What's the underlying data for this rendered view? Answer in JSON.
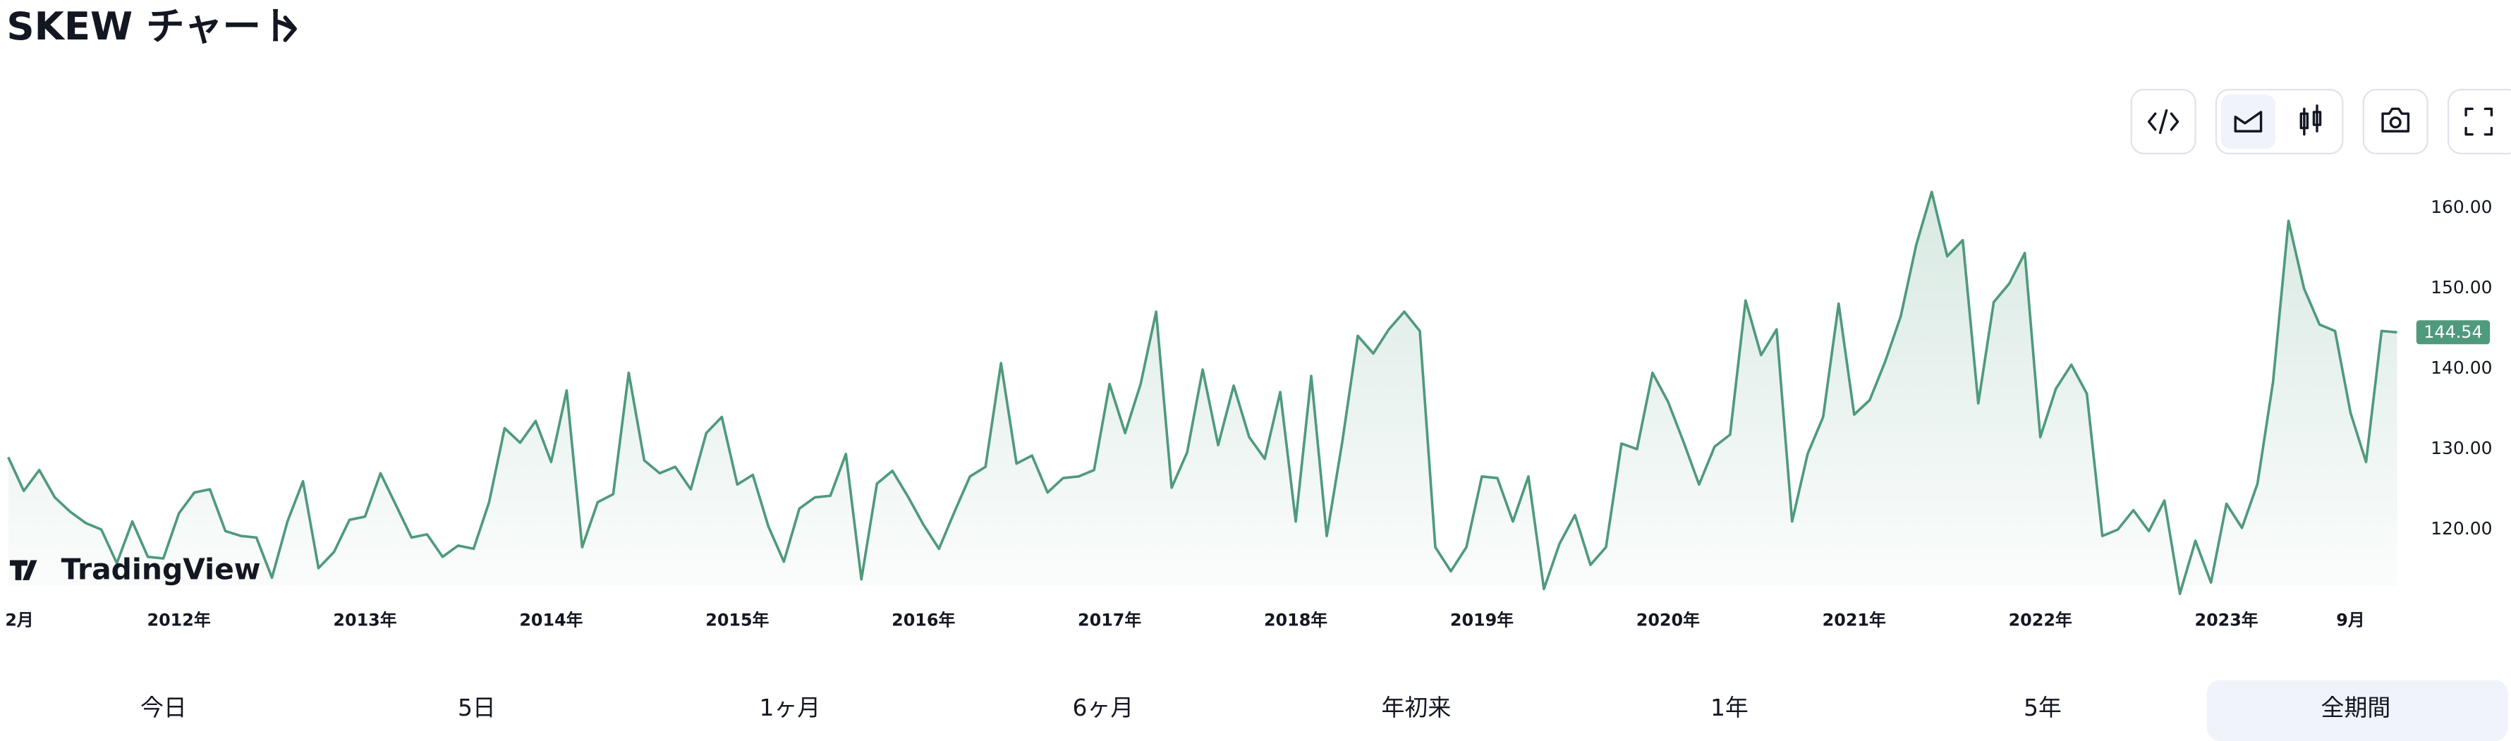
{
  "header": {
    "title": "SKEW チャート"
  },
  "chart_data": {
    "type": "line",
    "x": [
      "2011-02",
      "2011-03",
      "2011-04",
      "2011-05",
      "2011-06",
      "2011-07",
      "2011-08",
      "2011-09",
      "2011-10",
      "2011-11",
      "2011-12",
      "2012-01",
      "2012-02",
      "2012-03",
      "2012-04",
      "2012-05",
      "2012-06",
      "2012-07",
      "2012-08",
      "2012-09",
      "2012-10",
      "2012-11",
      "2012-12",
      "2013-01",
      "2013-02",
      "2013-03",
      "2013-04",
      "2013-05",
      "2013-06",
      "2013-07",
      "2013-08",
      "2013-09",
      "2013-10",
      "2013-11",
      "2013-12",
      "2014-01",
      "2014-02",
      "2014-03",
      "2014-04",
      "2014-05",
      "2014-06",
      "2014-07",
      "2014-08",
      "2014-09",
      "2014-10",
      "2014-11",
      "2014-12",
      "2015-01",
      "2015-02",
      "2015-03",
      "2015-04",
      "2015-05",
      "2015-06",
      "2015-07",
      "2015-08",
      "2015-09",
      "2015-10",
      "2015-11",
      "2015-12",
      "2016-01",
      "2016-02",
      "2016-03",
      "2016-04",
      "2016-05",
      "2016-06",
      "2016-07",
      "2016-08",
      "2016-09",
      "2016-10",
      "2016-11",
      "2016-12",
      "2017-01",
      "2017-02",
      "2017-03",
      "2017-04",
      "2017-05",
      "2017-06",
      "2017-07",
      "2017-08",
      "2017-09",
      "2017-10",
      "2017-11",
      "2017-12",
      "2018-01",
      "2018-02",
      "2018-03",
      "2018-04",
      "2018-05",
      "2018-06",
      "2018-07",
      "2018-08",
      "2018-09",
      "2018-10",
      "2018-11",
      "2018-12",
      "2019-01",
      "2019-02",
      "2019-03",
      "2019-04",
      "2019-05",
      "2019-06",
      "2019-07",
      "2019-08",
      "2019-09",
      "2019-10",
      "2019-11",
      "2019-12",
      "2020-01",
      "2020-02",
      "2020-03",
      "2020-04",
      "2020-05",
      "2020-06",
      "2020-07",
      "2020-08",
      "2020-09",
      "2020-10",
      "2020-11",
      "2020-12",
      "2021-01",
      "2021-02",
      "2021-03",
      "2021-04",
      "2021-05",
      "2021-06",
      "2021-07",
      "2021-08",
      "2021-09",
      "2021-10",
      "2021-11",
      "2021-12",
      "2022-01",
      "2022-02",
      "2022-03",
      "2022-04",
      "2022-05",
      "2022-06",
      "2022-07",
      "2022-08",
      "2022-09",
      "2022-10",
      "2022-11",
      "2022-12",
      "2023-01",
      "2023-02",
      "2023-03",
      "2023-04",
      "2023-05",
      "2023-06",
      "2023-07",
      "2023-08",
      "2023-09",
      "2023-10",
      "2023-11",
      "2023-12"
    ],
    "values": [
      129,
      124.8,
      127.4,
      124,
      122.2,
      120.8,
      120,
      115.8,
      121,
      116.6,
      116.4,
      122,
      124.6,
      125,
      119.8,
      119.2,
      119,
      114,
      121,
      126,
      115.2,
      117.2,
      121.2,
      121.6,
      127,
      123,
      119,
      119.4,
      116.6,
      118,
      117.6,
      123.4,
      132.6,
      130.8,
      133.5,
      128.4,
      137.3,
      117.8,
      123.4,
      124.4,
      139.5,
      128.6,
      127,
      127.8,
      125,
      132,
      134,
      125.6,
      126.8,
      120.4,
      116,
      122.6,
      124,
      124.2,
      129.4,
      113.8,
      125.7,
      127.3,
      124.1,
      120.6,
      117.6,
      122.2,
      126.6,
      127.8,
      140.7,
      128.2,
      129.2,
      124.6,
      126.4,
      126.6,
      127.4,
      138.1,
      132,
      138.1,
      147.1,
      125.2,
      129.6,
      139.9,
      130.5,
      137.9,
      131.5,
      128.8,
      137.1,
      121,
      139.1,
      119.2,
      130.9,
      144.1,
      141.9,
      144.9,
      147.1,
      144.7,
      117.8,
      114.8,
      117.8,
      126.6,
      126.4,
      121,
      126.6,
      112.6,
      118.2,
      121.8,
      115.6,
      117.8,
      130.7,
      130,
      139.5,
      135.9,
      130.9,
      125.6,
      130.3,
      131.8,
      148.5,
      141.7,
      144.9,
      121,
      129.4,
      134,
      148.1,
      134.3,
      136.1,
      140.9,
      146.5,
      155.4,
      162,
      154,
      156,
      135.7,
      148.3,
      150.6,
      154.4,
      131.5,
      137.5,
      140.5,
      136.9,
      119.2,
      120,
      122.4,
      119.8,
      123.6,
      112,
      118.6,
      113.4,
      123.2,
      120.2,
      125.7,
      138.3,
      158.4,
      150,
      145.5,
      144.7,
      134.5,
      128.4,
      144.7,
      144.54
    ],
    "color": "#4f9a7c",
    "xlim": [
      "2011-02",
      "2023-12"
    ],
    "xticks": [
      {
        "value": "2011-02",
        "label": "2月"
      },
      {
        "value": "2012-01",
        "label": "2012年"
      },
      {
        "value": "2013-01",
        "label": "2013年"
      },
      {
        "value": "2014-01",
        "label": "2014年"
      },
      {
        "value": "2015-01",
        "label": "2015年"
      },
      {
        "value": "2016-01",
        "label": "2016年"
      },
      {
        "value": "2017-01",
        "label": "2017年"
      },
      {
        "value": "2018-01",
        "label": "2018年"
      },
      {
        "value": "2019-01",
        "label": "2019年"
      },
      {
        "value": "2020-01",
        "label": "2020年"
      },
      {
        "value": "2021-01",
        "label": "2021年"
      },
      {
        "value": "2022-01",
        "label": "2022年"
      },
      {
        "value": "2023-01",
        "label": "2023年"
      },
      {
        "value": "2023-09",
        "label": "9月"
      }
    ],
    "ylim": [
      113,
      166
    ],
    "yticks": [
      {
        "value": 120,
        "label": "120.00"
      },
      {
        "value": 130,
        "label": "130.00"
      },
      {
        "value": 140,
        "label": "140.00"
      },
      {
        "value": 150,
        "label": "150.00"
      },
      {
        "value": 160,
        "label": "160.00"
      }
    ]
  },
  "branding": "TradingView",
  "range_tabs": {
    "items": [
      "今日",
      "5日",
      "1ヶ月",
      "6ヶ月",
      "年初来",
      "1年",
      "5年",
      "全期間"
    ],
    "active": "全期間"
  }
}
